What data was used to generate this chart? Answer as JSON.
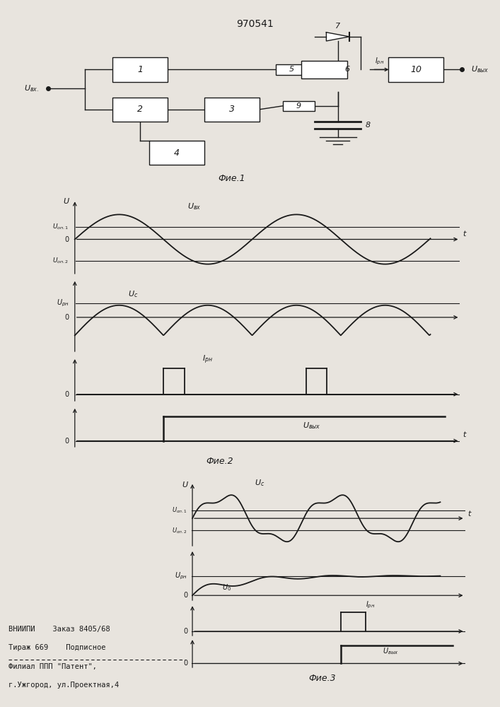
{
  "title": "970541",
  "fig1_label": "Фие.1",
  "fig2_label": "Фие.2",
  "fig3_label": "Фие.3",
  "footer_line1": "ВНИИПИ    Заказ 8405/68",
  "footer_line2": "Тираж 669    Подписное",
  "footer_line3": "Филиал ППП \"Патент\",",
  "footer_line4": "г.Ужгород, ул.Проектная,4",
  "bg_color": "#e8e4de",
  "line_color": "#1a1a1a"
}
